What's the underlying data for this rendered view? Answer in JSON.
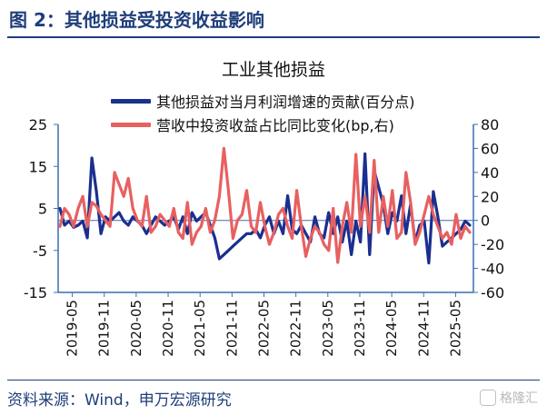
{
  "figure_title": "图 2：其他损益受投资收益影响",
  "source_text": "资料来源：Wind，申万宏源研究",
  "watermark_text": "格隆汇",
  "colors": {
    "navy": "#1f3e7a",
    "series_blue": "#1a2f8f",
    "series_red": "#e86060",
    "axis": "#3a6fb0"
  },
  "chart_data": {
    "type": "line",
    "title": "工业其他损益",
    "legend_position": "top-left",
    "grid": false,
    "x_tick_labels": [
      "2019-05",
      "2019-11",
      "2020-05",
      "2020-11",
      "2021-05",
      "2021-11",
      "2022-05",
      "2022-11",
      "2023-05",
      "2023-11",
      "2024-05",
      "2024-11",
      "2025-05"
    ],
    "y_left": {
      "ticks": [
        25,
        15,
        5,
        -5,
        -15
      ],
      "tick_labels": [
        "25",
        "15",
        "5",
        "-5",
        "-15"
      ],
      "range": [
        -15,
        25
      ]
    },
    "y_right": {
      "ticks": [
        80,
        60,
        40,
        20,
        0,
        -20,
        -40,
        -60
      ],
      "tick_labels": [
        "80",
        "60",
        "40",
        "20",
        "0",
        "-20",
        "-40",
        "-60"
      ],
      "range": [
        -60,
        80
      ]
    },
    "x_start": "2019-04",
    "series": [
      {
        "name": "其他损益对当月利润增速的贡献(百分点)",
        "axis": "left",
        "color": "#1a2f8f",
        "values": [
          5,
          1,
          2,
          0.5,
          1,
          2,
          -2,
          17,
          9,
          -1,
          3,
          2,
          3,
          4,
          2,
          1,
          3,
          2,
          1,
          -1,
          1,
          3,
          2,
          1,
          2,
          3,
          0,
          3,
          -1,
          4,
          2,
          3,
          4,
          1,
          -2,
          -7,
          -6,
          -5,
          -4,
          -3,
          -2,
          -1,
          -1,
          0,
          -2,
          1,
          3,
          -1,
          2,
          -1,
          8,
          0,
          -1,
          1,
          -1,
          -3,
          3,
          -1,
          -2,
          4,
          -1,
          3,
          -3,
          2,
          -6,
          2,
          -3,
          18,
          -6,
          14,
          10,
          6,
          -1,
          4,
          2,
          8,
          -1,
          6,
          -3,
          1,
          2,
          -8,
          9,
          3,
          -4,
          -3,
          -2,
          -1,
          0,
          2,
          1
        ]
      },
      {
        "name": "营收中投资收益占比同比变化(bp,右)",
        "axis": "right",
        "color": "#e86060",
        "values": [
          -5,
          10,
          5,
          -5,
          10,
          20,
          -5,
          15,
          12,
          5,
          0,
          -5,
          40,
          30,
          20,
          35,
          10,
          0,
          -5,
          20,
          -10,
          -5,
          5,
          0,
          -5,
          10,
          -10,
          -15,
          15,
          -20,
          -10,
          -5,
          10,
          -10,
          0,
          20,
          60,
          25,
          -15,
          0,
          5,
          25,
          -5,
          -10,
          15,
          -5,
          -20,
          -10,
          5,
          10,
          -5,
          -15,
          25,
          -5,
          -30,
          -15,
          -5,
          -10,
          -20,
          -25,
          10,
          -35,
          -5,
          15,
          -10,
          55,
          -5,
          20,
          -10,
          50,
          -10,
          20,
          -5,
          25,
          -15,
          -10,
          40,
          15,
          -20,
          -10,
          5,
          20,
          5,
          -5,
          -15,
          -10,
          -20,
          5,
          -15,
          -5,
          -10
        ]
      }
    ]
  }
}
